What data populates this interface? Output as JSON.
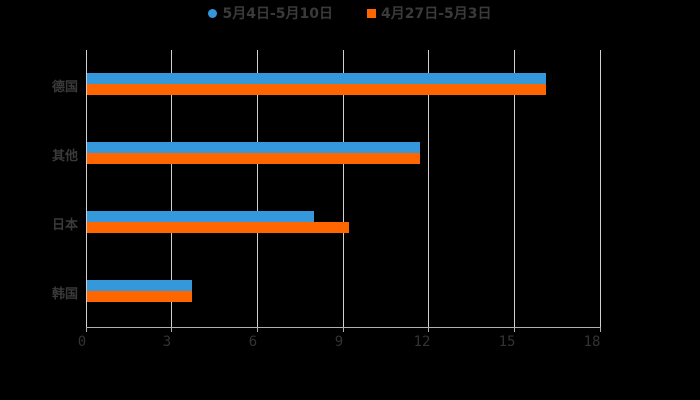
{
  "legend": [
    {
      "label": "5月4日-5月10日",
      "color": "#3598db",
      "shape": "circle"
    },
    {
      "label": "4月27日-5月3日",
      "color": "#ff6600",
      "shape": "square"
    }
  ],
  "chart_data": {
    "type": "bar",
    "orientation": "horizontal",
    "title": "",
    "xlabel": "",
    "ylabel": "",
    "categories": [
      "德国",
      "其他",
      "日本",
      "韩国"
    ],
    "series": [
      {
        "name": "5月4日-5月10日",
        "color": "#3598db",
        "values": [
          16.1,
          11.7,
          8.0,
          3.7
        ]
      },
      {
        "name": "4月27日-5月3日",
        "color": "#ff6600",
        "values": [
          16.1,
          11.7,
          9.2,
          3.7
        ]
      }
    ],
    "xlim": [
      0,
      18
    ],
    "xticks": [
      "0",
      "3",
      "6",
      "9",
      "12",
      "15",
      "18"
    ],
    "grid": "vertical",
    "legend_position": "top"
  }
}
